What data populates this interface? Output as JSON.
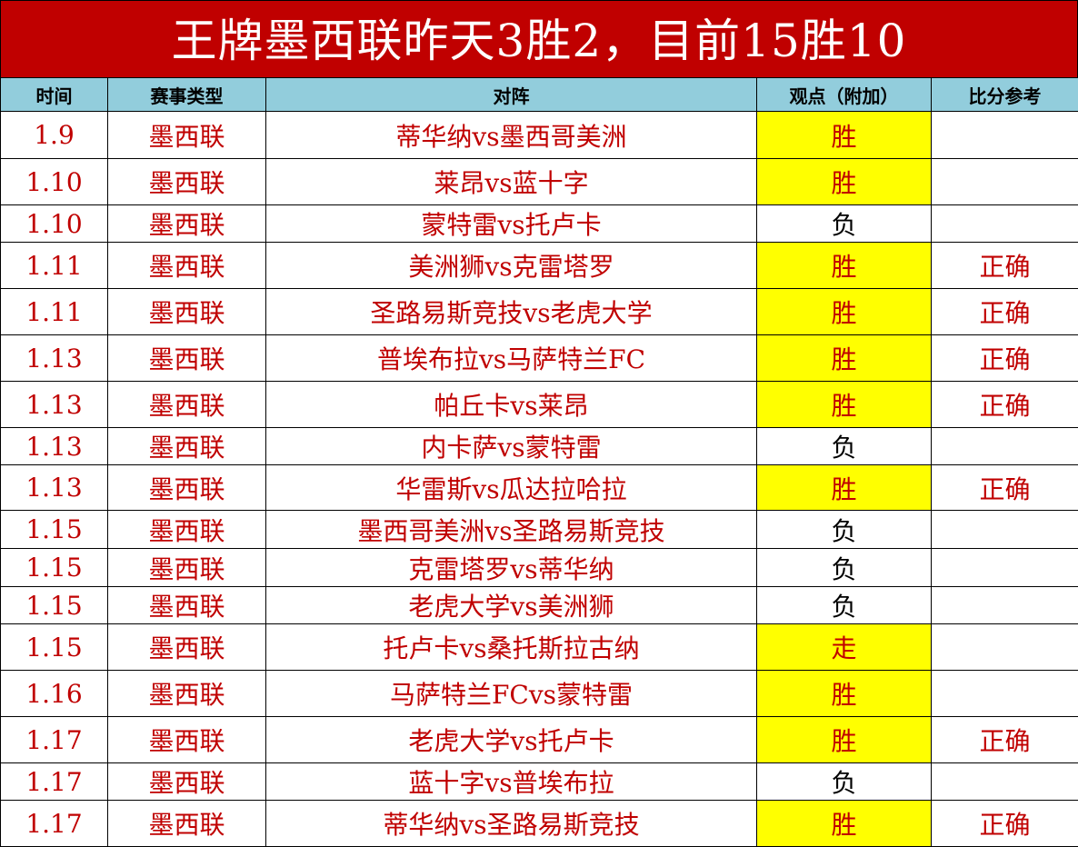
{
  "title": "王牌墨西联昨天3胜2，目前15胜10",
  "columns": [
    "时间",
    "赛事类型",
    "对阵",
    "观点（附加）",
    "比分参考"
  ],
  "colors": {
    "title_bg": "#c00000",
    "header_bg": "#92cddc",
    "highlight": "#ffff00",
    "text_red": "#c00000"
  },
  "rows": [
    {
      "date": "1.9",
      "league": "墨西联",
      "match": "蒂华纳vs墨西哥美洲",
      "pick": "胜",
      "highlight": true,
      "result": ""
    },
    {
      "date": "1.10",
      "league": "墨西联",
      "match": "莱昂vs蓝十字",
      "pick": "胜",
      "highlight": true,
      "result": ""
    },
    {
      "date": "1.10",
      "league": "墨西联",
      "match": "蒙特雷vs托卢卡",
      "pick": "负",
      "highlight": false,
      "result": ""
    },
    {
      "date": "1.11",
      "league": "墨西联",
      "match": "美洲狮vs克雷塔罗",
      "pick": "胜",
      "highlight": true,
      "result": "正确"
    },
    {
      "date": "1.11",
      "league": "墨西联",
      "match": "圣路易斯竞技vs老虎大学",
      "pick": "胜",
      "highlight": true,
      "result": "正确"
    },
    {
      "date": "1.13",
      "league": "墨西联",
      "match": "普埃布拉vs马萨特兰FC",
      "pick": "胜",
      "highlight": true,
      "result": "正确"
    },
    {
      "date": "1.13",
      "league": "墨西联",
      "match": "帕丘卡vs莱昂",
      "pick": "胜",
      "highlight": true,
      "result": "正确"
    },
    {
      "date": "1.13",
      "league": "墨西联",
      "match": "内卡萨vs蒙特雷",
      "pick": "负",
      "highlight": false,
      "result": ""
    },
    {
      "date": "1.13",
      "league": "墨西联",
      "match": "华雷斯vs瓜达拉哈拉",
      "pick": "胜",
      "highlight": true,
      "result": "正确"
    },
    {
      "date": "1.15",
      "league": "墨西联",
      "match": "墨西哥美洲vs圣路易斯竞技",
      "pick": "负",
      "highlight": false,
      "result": ""
    },
    {
      "date": "1.15",
      "league": "墨西联",
      "match": "克雷塔罗vs蒂华纳",
      "pick": "负",
      "highlight": false,
      "result": ""
    },
    {
      "date": "1.15",
      "league": "墨西联",
      "match": "老虎大学vs美洲狮",
      "pick": "负",
      "highlight": false,
      "result": ""
    },
    {
      "date": "1.15",
      "league": "墨西联",
      "match": "托卢卡vs桑托斯拉古纳",
      "pick": "走",
      "highlight": true,
      "result": ""
    },
    {
      "date": "1.16",
      "league": "墨西联",
      "match": "马萨特兰FCvs蒙特雷",
      "pick": "胜",
      "highlight": true,
      "result": ""
    },
    {
      "date": "1.17",
      "league": "墨西联",
      "match": "老虎大学vs托卢卡",
      "pick": "胜",
      "highlight": true,
      "result": "正确"
    },
    {
      "date": "1.17",
      "league": "墨西联",
      "match": "蓝十字vs普埃布拉",
      "pick": "负",
      "highlight": false,
      "result": ""
    },
    {
      "date": "1.17",
      "league": "墨西联",
      "match": "蒂华纳vs圣路易斯竞技",
      "pick": "胜",
      "highlight": true,
      "result": "正确"
    }
  ]
}
